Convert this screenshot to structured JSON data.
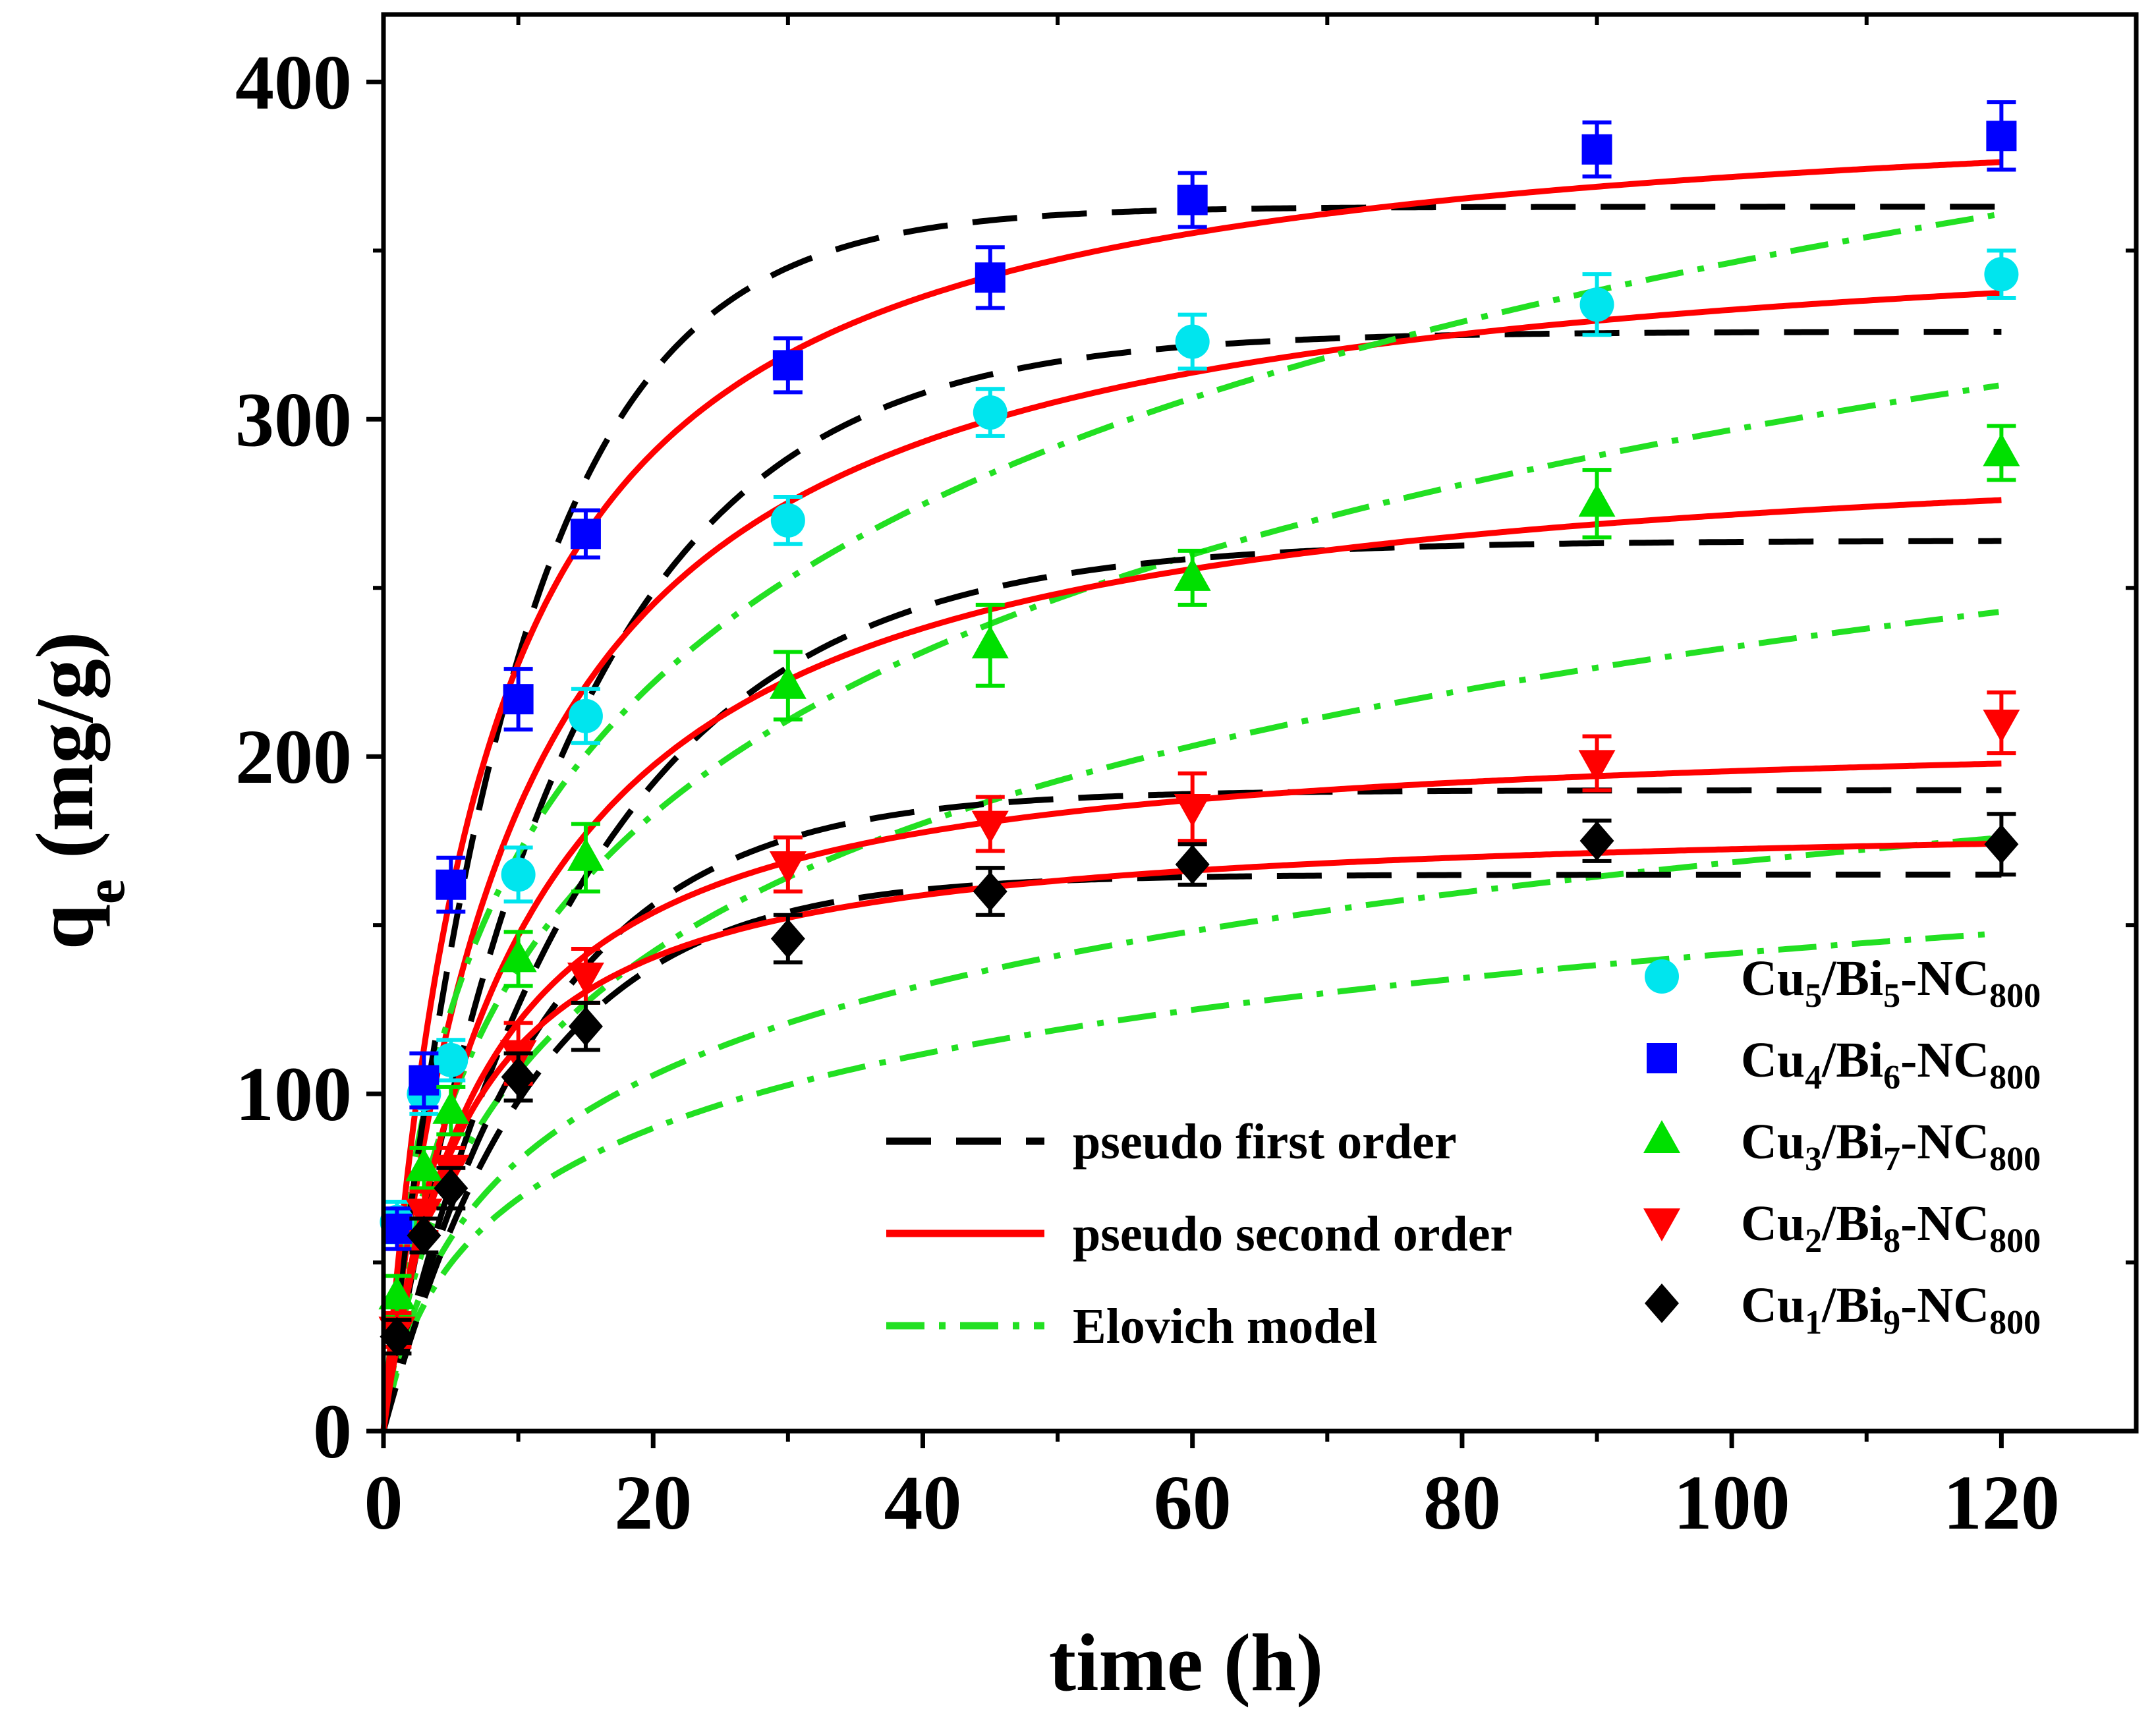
{
  "chart_data": {
    "type": "scatter",
    "title": "",
    "xlabel": "time (h)",
    "ylabel": {
      "main": "q",
      "sub": "e",
      "rest": " (mg/g)"
    },
    "xlim": [
      0,
      130
    ],
    "ylim": [
      0,
      420
    ],
    "xticks": [
      0,
      20,
      40,
      60,
      80,
      100,
      120
    ],
    "yticks": [
      0,
      100,
      200,
      300,
      400
    ],
    "xtick_labels": [
      "0",
      "20",
      "40",
      "60",
      "80",
      "100",
      "120"
    ],
    "ytick_labels": [
      "0",
      "100",
      "200",
      "300",
      "400"
    ],
    "x": [
      0,
      1,
      3,
      5,
      10,
      15,
      30,
      45,
      60,
      90,
      120
    ],
    "series": [
      {
        "name": "Cu5/Bi5-NC800",
        "label": {
          "a": "Cu",
          "b": "5",
          "c": "/Bi",
          "d": "5",
          "e": "-NC",
          "f": "800"
        },
        "marker": "circle",
        "color": "#00e5ee",
        "values": [
          0,
          62,
          100,
          110,
          165,
          212,
          270,
          302,
          323,
          334,
          343
        ],
        "errors": [
          0,
          6,
          6,
          6,
          8,
          8,
          7,
          7,
          8,
          9,
          7
        ],
        "pfo": {
          "qe": 326,
          "k1": 0.072
        },
        "pso": {
          "qe": 365,
          "k2": 0.00028
        },
        "elovich": {
          "alpha": 40,
          "beta": 0.0135
        }
      },
      {
        "name": "Cu4/Bi6-NC800",
        "label": {
          "a": "Cu",
          "b": "4",
          "c": "/Bi",
          "d": "6",
          "e": "-NC",
          "f": "800"
        },
        "marker": "square",
        "color": "#0000ff",
        "values": [
          0,
          60,
          104,
          162,
          217,
          266,
          316,
          342,
          365,
          380,
          384
        ],
        "errors": [
          0,
          6,
          8,
          8,
          9,
          7,
          8,
          9,
          8,
          8,
          10
        ],
        "pfo": {
          "qe": 363,
          "k1": 0.1
        },
        "pso": {
          "qe": 400,
          "k2": 0.00033
        },
        "elovich": {
          "alpha": 60,
          "beta": 0.0125
        }
      },
      {
        "name": "Cu3/Bi7-NC800",
        "label": {
          "a": "Cu",
          "b": "3",
          "c": "/Bi",
          "d": "7",
          "e": "-NC",
          "f": "800"
        },
        "marker": "triangle-up",
        "color": "#00e000",
        "values": [
          0,
          40,
          78,
          95,
          140,
          170,
          221,
          233,
          253,
          275,
          290
        ],
        "errors": [
          0,
          6,
          6,
          7,
          8,
          10,
          10,
          12,
          8,
          10,
          8
        ],
        "pfo": {
          "qe": 264,
          "k1": 0.065
        },
        "pso": {
          "qe": 300,
          "k2": 0.00032
        },
        "elovich": {
          "alpha": 30,
          "beta": 0.017
        }
      },
      {
        "name": "Cu2/Bi8-NC800",
        "label": {
          "a": "Cu",
          "b": "2",
          "c": "/Bi",
          "d": "8",
          "e": "-NC",
          "f": "800"
        },
        "marker": "triangle-down",
        "color": "#ff0000",
        "values": [
          0,
          30,
          65,
          78,
          112,
          135,
          168,
          180,
          185,
          198,
          210
        ],
        "errors": [
          0,
          5,
          6,
          6,
          9,
          8,
          8,
          8,
          10,
          8,
          9
        ],
        "pfo": {
          "qe": 190,
          "k1": 0.086
        },
        "pso": {
          "qe": 210,
          "k2": 0.00065
        },
        "elovich": {
          "alpha": 25,
          "beta": 0.0245
        }
      },
      {
        "name": "Cu1/Bi9-NC800",
        "label": {
          "a": "Cu",
          "b": "1",
          "c": "/Bi",
          "d": "9",
          "e": "-NC",
          "f": "800"
        },
        "marker": "diamond",
        "color": "#000000",
        "values": [
          0,
          28,
          58,
          72,
          105,
          120,
          146,
          160,
          168,
          175,
          174
        ],
        "errors": [
          0,
          5,
          5,
          6,
          7,
          7,
          7,
          7,
          6,
          6,
          9
        ],
        "pfo": {
          "qe": 165,
          "k1": 0.09
        },
        "pso": {
          "qe": 183,
          "k2": 0.0009
        },
        "elovich": {
          "alpha": 23,
          "beta": 0.03
        }
      }
    ],
    "models": [
      {
        "name": "pseudo first order",
        "color": "#000000",
        "dash": "dashed"
      },
      {
        "name": "pseudo second order",
        "color": "#ff0000",
        "dash": "solid"
      },
      {
        "name": "Elovich model",
        "color": "#22e022",
        "dash": "dashdot"
      }
    ]
  }
}
